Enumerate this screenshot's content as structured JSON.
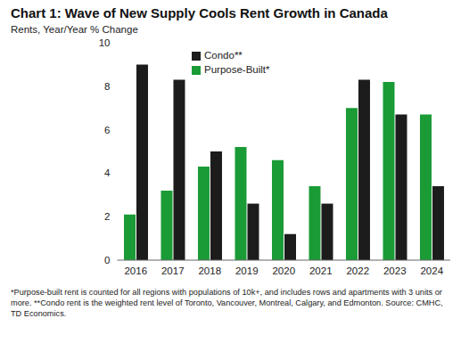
{
  "chart_data": {
    "type": "bar",
    "title": "Chart 1: Wave of New Supply Cools Rent Growth in Canada",
    "subtitle": "Rents, Year/Year % Change",
    "categories": [
      "2016",
      "2017",
      "2018",
      "2019",
      "2020",
      "2021",
      "2022",
      "2023",
      "2024"
    ],
    "series": [
      {
        "name": "Purpose-Built*",
        "color": "#1a9b36",
        "values": [
          2.1,
          3.2,
          4.3,
          5.2,
          4.6,
          3.4,
          7.0,
          8.2,
          6.7
        ]
      },
      {
        "name": "Condo**",
        "color": "#1c1c1c",
        "values": [
          9.0,
          8.3,
          5.0,
          2.6,
          1.2,
          2.6,
          8.3,
          6.7,
          3.4
        ]
      }
    ],
    "ylim": [
      0,
      10
    ],
    "yticks": [
      0,
      2,
      4,
      6,
      8,
      10
    ],
    "grid": false,
    "legend": "upper center",
    "footnote": "*Purpose-built rent is counted for all regions with populations of 10k+, and includes rows and apartments with 3 units or more. **Condo rent is the weighted rent level of Toronto, Vancouver, Montreal, Calgary, and Edmonton. Source: CMHC, TD Economics."
  }
}
